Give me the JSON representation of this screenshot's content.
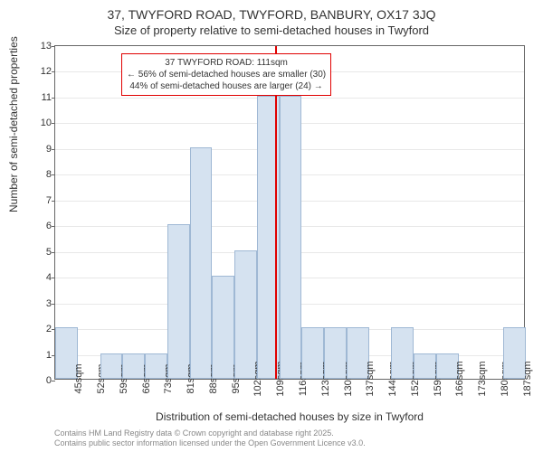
{
  "title_main": "37, TWYFORD ROAD, TWYFORD, BANBURY, OX17 3JQ",
  "title_sub": "Size of property relative to semi-detached houses in Twyford",
  "ylabel": "Number of semi-detached properties",
  "xlabel": "Distribution of semi-detached houses by size in Twyford",
  "footer_line1": "Contains HM Land Registry data © Crown copyright and database right 2025.",
  "footer_line2": "Contains public sector information licensed under the Open Government Licence v3.0.",
  "chart": {
    "type": "histogram",
    "ylim": [
      0,
      13
    ],
    "ytick_step": 1,
    "xcategories": [
      "45sqm",
      "52sqm",
      "59sqm",
      "66sqm",
      "73sqm",
      "81sqm",
      "88sqm",
      "95sqm",
      "102sqm",
      "109sqm",
      "116sqm",
      "123sqm",
      "130sqm",
      "137sqm",
      "144sqm",
      "152sqm",
      "159sqm",
      "166sqm",
      "173sqm",
      "180sqm",
      "187sqm"
    ],
    "values": [
      2,
      0,
      1,
      1,
      1,
      6,
      9,
      4,
      5,
      11,
      11,
      2,
      2,
      2,
      0,
      2,
      1,
      1,
      0,
      0,
      2
    ],
    "bar_fill": "#d5e2f0",
    "bar_border": "#9fb8d4",
    "background": "#ffffff",
    "grid_color": "#e8e8e8",
    "axis_color": "#666666",
    "reference_line": {
      "position_pct": 46.8,
      "color": "#e00000"
    },
    "annotation": {
      "line1": "37 TWYFORD ROAD: 111sqm",
      "line2": "← 56% of semi-detached houses are smaller (30)",
      "line3": "44% of semi-detached houses are larger (24) →",
      "border_color": "#e00000",
      "fontsize": 10
    }
  }
}
